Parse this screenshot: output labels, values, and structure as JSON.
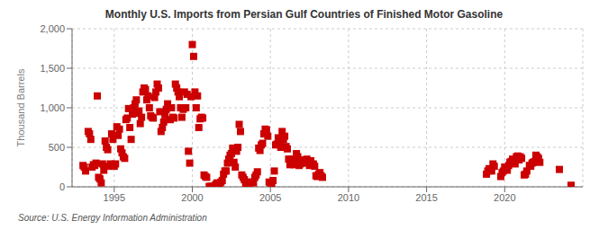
{
  "chart_data": {
    "type": "scatter",
    "title": "Monthly U.S. Imports from Persian Gulf Countries of Finished Motor Gasoline",
    "ylabel": "Thousand Barrels",
    "annotations": [
      "Source: U.S. Energy Information Administration"
    ],
    "color": "#CC0000",
    "marker": "square",
    "grid": true,
    "xlim": [
      1992.3,
      2025.0
    ],
    "xticks": [
      1995,
      2000,
      2005,
      2010,
      2015,
      2020
    ],
    "ylim": [
      0,
      2000
    ],
    "yticks": [
      0,
      500,
      {
        "value": 1000,
        "label": "1,000"
      },
      {
        "value": 1500,
        "label": "1,500"
      },
      {
        "value": 2000,
        "label": "2,000"
      }
    ],
    "x": [
      1993.0,
      1993.083,
      1993.167,
      1993.333,
      1993.417,
      1993.5,
      1993.583,
      1993.667,
      1993.75,
      1993.833,
      1993.917,
      1994.0,
      1994.083,
      1994.167,
      1994.25,
      1994.333,
      1994.417,
      1994.5,
      1994.583,
      1994.667,
      1994.75,
      1994.833,
      1994.917,
      1995.0,
      1995.083,
      1995.167,
      1995.25,
      1995.333,
      1995.417,
      1995.5,
      1995.583,
      1995.667,
      1995.75,
      1995.833,
      1995.917,
      1996.0,
      1996.083,
      1996.167,
      1996.25,
      1996.333,
      1996.417,
      1996.5,
      1996.583,
      1996.667,
      1996.75,
      1996.833,
      1996.917,
      1997.0,
      1997.083,
      1997.167,
      1997.25,
      1997.333,
      1997.417,
      1997.5,
      1997.583,
      1997.667,
      1997.75,
      1997.833,
      1997.917,
      1998.0,
      1998.083,
      1998.167,
      1998.25,
      1998.333,
      1998.417,
      1998.5,
      1998.583,
      1998.667,
      1998.75,
      1998.833,
      1998.917,
      1999.0,
      1999.083,
      1999.167,
      1999.25,
      1999.333,
      1999.417,
      1999.5,
      1999.583,
      1999.667,
      1999.75,
      1999.833,
      1999.917,
      2000.0,
      2000.083,
      2000.167,
      2000.25,
      2000.333,
      2000.417,
      2000.5,
      2000.583,
      2000.667,
      2000.75,
      2000.833,
      2000.917,
      2001.083,
      2001.167,
      2001.25,
      2001.333,
      2001.417,
      2001.5,
      2001.583,
      2001.667,
      2001.75,
      2001.833,
      2001.917,
      2002.0,
      2002.083,
      2002.167,
      2002.25,
      2002.333,
      2002.417,
      2002.5,
      2002.583,
      2002.667,
      2002.75,
      2002.833,
      2002.917,
      2003.0,
      2003.083,
      2003.167,
      2003.25,
      2003.333,
      2003.417,
      2003.5,
      2003.583,
      2003.667,
      2003.75,
      2003.833,
      2003.917,
      2004.0,
      2004.083,
      2004.167,
      2004.25,
      2004.333,
      2004.417,
      2004.5,
      2004.583,
      2004.667,
      2004.75,
      2004.833,
      2004.917,
      2005.0,
      2005.083,
      2005.167,
      2005.25,
      2005.333,
      2005.417,
      2005.5,
      2005.583,
      2005.667,
      2005.75,
      2005.833,
      2005.917,
      2006.0,
      2006.083,
      2006.167,
      2006.25,
      2006.333,
      2006.417,
      2006.5,
      2006.583,
      2006.667,
      2006.75,
      2006.833,
      2006.917,
      2007.0,
      2007.083,
      2007.167,
      2007.25,
      2007.333,
      2007.417,
      2007.5,
      2007.583,
      2007.667,
      2007.75,
      2007.833,
      2007.917,
      2008.0,
      2008.083,
      2008.167,
      2008.25,
      2008.333,
      2018.833,
      2018.917,
      2019.0,
      2019.167,
      2019.25,
      2019.333,
      2019.75,
      2019.833,
      2019.917,
      2020.0,
      2020.083,
      2020.167,
      2020.25,
      2020.333,
      2020.417,
      2020.5,
      2020.583,
      2020.667,
      2020.75,
      2020.833,
      2020.917,
      2021.0,
      2021.083,
      2021.25,
      2021.333,
      2021.417,
      2021.583,
      2021.667,
      2021.75,
      2021.833,
      2021.917,
      2022.0,
      2022.083,
      2022.167,
      2022.25,
      2023.5,
      2024.25
    ],
    "values": [
      270,
      250,
      200,
      700,
      670,
      600,
      250,
      280,
      270,
      300,
      1150,
      120,
      100,
      50,
      290,
      210,
      580,
      500,
      470,
      260,
      290,
      670,
      600,
      260,
      290,
      760,
      650,
      730,
      480,
      430,
      380,
      360,
      850,
      870,
      990,
      750,
      600,
      920,
      1000,
      1050,
      1100,
      930,
      960,
      800,
      880,
      1200,
      1250,
      1230,
      1100,
      1150,
      1000,
      900,
      880,
      870,
      1130,
      1200,
      1300,
      1250,
      950,
      700,
      750,
      820,
      910,
      980,
      1050,
      1000,
      850,
      1000,
      880,
      870,
      1300,
      1250,
      1200,
      1140,
      1000,
      880,
      980,
      1200,
      1000,
      1170,
      450,
      300,
      1140,
      1800,
      1650,
      1200,
      1000,
      1150,
      750,
      860,
      880,
      870,
      150,
      130,
      120,
      5,
      5,
      5,
      5,
      5,
      30,
      50,
      20,
      10,
      60,
      80,
      160,
      200,
      200,
      300,
      350,
      400,
      420,
      490,
      310,
      250,
      450,
      500,
      790,
      700,
      150,
      120,
      90,
      30,
      5,
      50,
      50,
      60,
      60,
      50,
      120,
      150,
      190,
      490,
      460,
      530,
      550,
      670,
      730,
      720,
      640,
      60,
      50,
      20,
      80,
      200,
      530,
      540,
      620,
      560,
      500,
      700,
      600,
      640,
      510,
      480,
      350,
      280,
      350,
      320,
      280,
      330,
      420,
      380,
      270,
      290,
      310,
      330,
      340,
      300,
      350,
      320,
      270,
      330,
      280,
      290,
      260,
      140,
      130,
      160,
      180,
      140,
      120,
      160,
      200,
      230,
      200,
      290,
      260,
      130,
      180,
      200,
      250,
      220,
      210,
      270,
      310,
      320,
      350,
      310,
      290,
      380,
      390,
      340,
      380,
      360,
      150,
      160,
      200,
      270,
      260,
      300,
      310,
      320,
      400,
      380,
      360,
      310,
      220,
      20
    ]
  }
}
